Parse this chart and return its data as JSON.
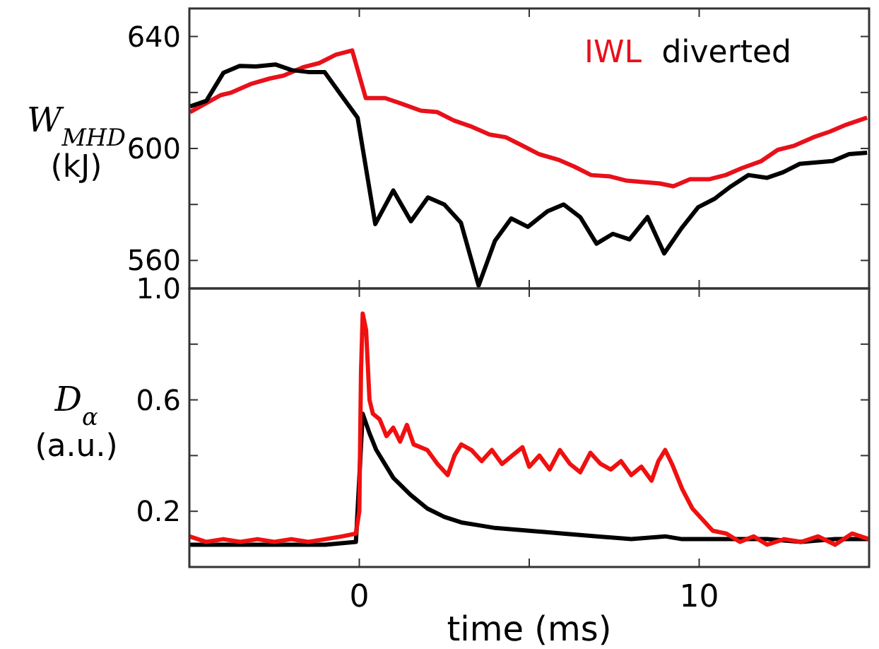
{
  "chart_data": [
    {
      "type": "line",
      "ylabel": "W$_{MHD}$ (kJ)",
      "xlim": [
        -5,
        15
      ],
      "xticks": [
        {
          "value": 0,
          "label": null
        },
        {
          "value": 5,
          "label": null
        },
        {
          "value": 10,
          "label": null
        }
      ],
      "ylim": [
        550,
        650
      ],
      "yticks": [
        560,
        {
          "value": 580,
          "label": null
        },
        600,
        {
          "value": 620,
          "label": null
        },
        640
      ],
      "tick_labels": "y",
      "legend": "top right",
      "line_style": "solid",
      "marker": "none",
      "grid": false,
      "series": [
        {
          "name": "IWL",
          "color": "#e8101a",
          "x": [
            -4.98,
            -4.09,
            -3.76,
            -3.2,
            -2.63,
            -2.23,
            -1.66,
            -1.18,
            -0.69,
            -0.21,
            0.19,
            0.76,
            1.24,
            1.81,
            2.29,
            2.78,
            3.26,
            3.83,
            4.31,
            4.8,
            5.28,
            5.85,
            6.33,
            6.82,
            7.38,
            7.87,
            8.35,
            8.84,
            9.24,
            9.73,
            10.29,
            10.78,
            11.26,
            11.83,
            12.31,
            12.8,
            13.36,
            13.84,
            14.33,
            14.94
          ],
          "values": [
            613,
            619,
            620,
            623,
            625,
            626,
            629,
            630.5,
            633.5,
            635,
            618,
            618,
            616,
            613.5,
            613,
            610,
            608,
            605,
            604,
            601,
            598,
            596,
            593.5,
            590.5,
            590,
            588.5,
            588,
            587.5,
            586.5,
            589,
            589,
            590.5,
            593,
            595.5,
            599.5,
            601,
            604,
            606,
            608.5,
            611
          ]
        },
        {
          "name": "diverted",
          "color": "#000000",
          "x": [
            -4.98,
            -4.5,
            -4.0,
            -3.52,
            -3.04,
            -2.47,
            -1.99,
            -1.5,
            -1.02,
            -0.53,
            -0.05,
            0.47,
            1.0,
            1.52,
            2.02,
            2.5,
            2.99,
            3.51,
            3.99,
            4.47,
            4.96,
            5.53,
            6.01,
            6.5,
            6.98,
            7.46,
            7.95,
            8.48,
            8.97,
            9.48,
            9.97,
            10.45,
            10.94,
            11.45,
            11.99,
            12.47,
            12.96,
            13.44,
            13.93,
            14.41,
            14.94
          ],
          "values": [
            615,
            617,
            627,
            629.5,
            629.3,
            630,
            628,
            627.3,
            627.3,
            619,
            611,
            573,
            585,
            574,
            582.5,
            580,
            573.5,
            551,
            567,
            575,
            572,
            577.5,
            580,
            575.5,
            566,
            569.5,
            567.5,
            575.5,
            562.5,
            571.5,
            579,
            582,
            586.5,
            590.5,
            589.5,
            591.5,
            594.5,
            595,
            595.5,
            598,
            598.5
          ]
        }
      ]
    },
    {
      "type": "line",
      "ylabel": "D$_{α}$ (a.u.)",
      "xlabel": "time (ms)",
      "xlim": [
        -5,
        15
      ],
      "xticks": [
        0,
        {
          "value": 5,
          "label": null
        },
        10
      ],
      "ylim": [
        0,
        1
      ],
      "yticks": [
        0.2,
        {
          "value": 0.4,
          "label": null
        },
        0.6,
        {
          "value": 0.8,
          "label": null
        },
        {
          "value": 1,
          "label": "1.0"
        }
      ],
      "line_style": "solid",
      "marker": "none",
      "grid": false,
      "series": [
        {
          "color": "#000000",
          "x": [
            -5,
            -3,
            -1,
            -0.1,
            0.1,
            0.3,
            0.5,
            0.8,
            1.0,
            1.5,
            2.0,
            2.5,
            3.0,
            3.5,
            4.0,
            5.0,
            6.0,
            7.0,
            8.0,
            9.0,
            9.5,
            10,
            11,
            12,
            13,
            14,
            15
          ],
          "values": [
            0.08,
            0.08,
            0.08,
            0.09,
            0.55,
            0.48,
            0.42,
            0.36,
            0.32,
            0.26,
            0.21,
            0.18,
            0.16,
            0.15,
            0.14,
            0.13,
            0.12,
            0.11,
            0.1,
            0.11,
            0.1,
            0.1,
            0.1,
            0.1,
            0.09,
            0.1,
            0.1
          ]
        },
        {
          "color": "#f01010",
          "x": [
            -5,
            -4.5,
            -4,
            -3.5,
            -3,
            -2.5,
            -2,
            -1.5,
            -1,
            -0.5,
            -0.1,
            0,
            0.05,
            0.1,
            0.2,
            0.3,
            0.4,
            0.6,
            0.8,
            1.0,
            1.2,
            1.4,
            1.6,
            2.0,
            2.3,
            2.6,
            2.8,
            3.0,
            3.3,
            3.6,
            3.9,
            4.2,
            4.5,
            4.8,
            5.0,
            5.3,
            5.6,
            5.9,
            6.2,
            6.5,
            6.8,
            7.1,
            7.4,
            7.7,
            8.0,
            8.3,
            8.6,
            8.8,
            9.0,
            9.2,
            9.5,
            9.8,
            10.1,
            10.4,
            10.8,
            11.2,
            11.6,
            12.0,
            12.5,
            13.0,
            13.5,
            14.0,
            14.5,
            15
          ],
          "values": [
            0.11,
            0.09,
            0.1,
            0.09,
            0.1,
            0.09,
            0.1,
            0.09,
            0.1,
            0.11,
            0.12,
            0.2,
            0.7,
            0.91,
            0.85,
            0.6,
            0.55,
            0.53,
            0.47,
            0.5,
            0.45,
            0.51,
            0.44,
            0.42,
            0.37,
            0.33,
            0.4,
            0.44,
            0.42,
            0.38,
            0.42,
            0.37,
            0.4,
            0.43,
            0.36,
            0.4,
            0.35,
            0.42,
            0.37,
            0.34,
            0.41,
            0.37,
            0.35,
            0.38,
            0.33,
            0.36,
            0.31,
            0.38,
            0.42,
            0.37,
            0.28,
            0.21,
            0.17,
            0.13,
            0.12,
            0.09,
            0.11,
            0.08,
            0.1,
            0.09,
            0.11,
            0.08,
            0.12,
            0.1
          ]
        }
      ]
    }
  ]
}
